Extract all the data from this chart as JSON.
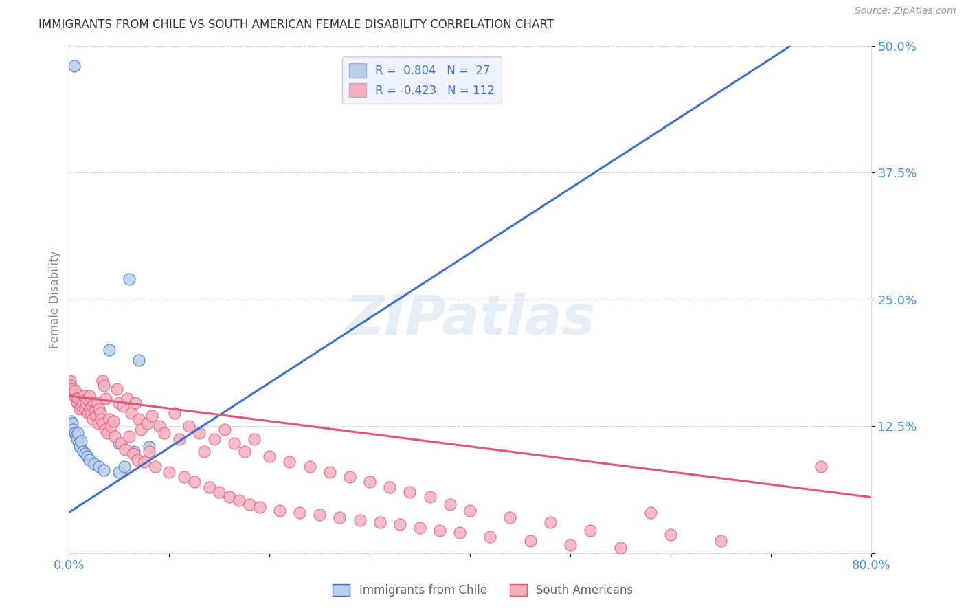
{
  "title": "IMMIGRANTS FROM CHILE VS SOUTH AMERICAN FEMALE DISABILITY CORRELATION CHART",
  "source": "Source: ZipAtlas.com",
  "ylabel": "Female Disability",
  "x_min": 0.0,
  "x_max": 0.8,
  "y_min": 0.0,
  "y_max": 0.5,
  "x_ticks": [
    0.0,
    0.1,
    0.2,
    0.3,
    0.4,
    0.5,
    0.6,
    0.7,
    0.8
  ],
  "x_tick_labels": [
    "0.0%",
    "",
    "",
    "",
    "",
    "",
    "",
    "",
    "80.0%"
  ],
  "y_ticks": [
    0.0,
    0.125,
    0.25,
    0.375,
    0.5
  ],
  "y_tick_labels": [
    "",
    "12.5%",
    "25.0%",
    "37.5%",
    "50.0%"
  ],
  "legend_items": [
    "Immigrants from Chile",
    "South Americans"
  ],
  "blue_R": 0.804,
  "blue_N": 27,
  "pink_R": -0.423,
  "pink_N": 112,
  "blue_color": "#b8d0ea",
  "pink_color": "#f5b0c0",
  "blue_line_color": "#4070c8",
  "pink_line_color": "#e05878",
  "axis_label_color": "#4a90d9",
  "grid_color": "#c8d8e8",
  "background_color": "#ffffff",
  "blue_line_x0": 0.0,
  "blue_line_y0": 0.04,
  "blue_line_x1": 0.72,
  "blue_line_y1": 0.5,
  "pink_line_x0": 0.0,
  "pink_line_y0": 0.155,
  "pink_line_x1": 0.8,
  "pink_line_y1": 0.055,
  "blue_dots_x": [
    0.001,
    0.002,
    0.003,
    0.004,
    0.005,
    0.006,
    0.007,
    0.008,
    0.009,
    0.01,
    0.011,
    0.012,
    0.014,
    0.016,
    0.018,
    0.02,
    0.025,
    0.03,
    0.035,
    0.04,
    0.05,
    0.055,
    0.06,
    0.065,
    0.07,
    0.08,
    0.05
  ],
  "blue_dots_y": [
    0.125,
    0.13,
    0.128,
    0.122,
    0.48,
    0.118,
    0.115,
    0.112,
    0.118,
    0.108,
    0.105,
    0.11,
    0.1,
    0.098,
    0.095,
    0.092,
    0.088,
    0.085,
    0.082,
    0.2,
    0.08,
    0.085,
    0.27,
    0.1,
    0.19,
    0.105,
    0.108
  ],
  "pink_dots_x": [
    0.001,
    0.002,
    0.003,
    0.004,
    0.005,
    0.006,
    0.007,
    0.008,
    0.009,
    0.01,
    0.011,
    0.012,
    0.013,
    0.014,
    0.015,
    0.016,
    0.017,
    0.018,
    0.019,
    0.02,
    0.021,
    0.022,
    0.023,
    0.024,
    0.025,
    0.026,
    0.027,
    0.028,
    0.029,
    0.03,
    0.031,
    0.032,
    0.033,
    0.034,
    0.035,
    0.036,
    0.037,
    0.038,
    0.04,
    0.042,
    0.044,
    0.046,
    0.048,
    0.05,
    0.052,
    0.054,
    0.056,
    0.058,
    0.06,
    0.062,
    0.064,
    0.066,
    0.068,
    0.07,
    0.072,
    0.075,
    0.078,
    0.08,
    0.083,
    0.086,
    0.09,
    0.095,
    0.1,
    0.105,
    0.11,
    0.115,
    0.12,
    0.125,
    0.13,
    0.135,
    0.14,
    0.145,
    0.15,
    0.155,
    0.16,
    0.165,
    0.17,
    0.175,
    0.18,
    0.185,
    0.19,
    0.2,
    0.21,
    0.22,
    0.23,
    0.24,
    0.25,
    0.26,
    0.27,
    0.28,
    0.29,
    0.3,
    0.31,
    0.32,
    0.33,
    0.34,
    0.35,
    0.36,
    0.37,
    0.38,
    0.39,
    0.4,
    0.42,
    0.44,
    0.46,
    0.48,
    0.5,
    0.52,
    0.55,
    0.6,
    0.65,
    0.75,
    0.58
  ],
  "pink_dots_y": [
    0.17,
    0.165,
    0.162,
    0.158,
    0.155,
    0.16,
    0.152,
    0.148,
    0.152,
    0.145,
    0.142,
    0.15,
    0.145,
    0.148,
    0.155,
    0.142,
    0.148,
    0.152,
    0.138,
    0.155,
    0.142,
    0.138,
    0.145,
    0.132,
    0.148,
    0.14,
    0.135,
    0.148,
    0.128,
    0.142,
    0.138,
    0.132,
    0.17,
    0.128,
    0.165,
    0.122,
    0.152,
    0.118,
    0.132,
    0.125,
    0.13,
    0.115,
    0.162,
    0.148,
    0.108,
    0.145,
    0.102,
    0.152,
    0.115,
    0.138,
    0.098,
    0.148,
    0.092,
    0.132,
    0.122,
    0.09,
    0.128,
    0.1,
    0.135,
    0.085,
    0.125,
    0.118,
    0.08,
    0.138,
    0.112,
    0.075,
    0.125,
    0.07,
    0.118,
    0.1,
    0.065,
    0.112,
    0.06,
    0.122,
    0.055,
    0.108,
    0.052,
    0.1,
    0.048,
    0.112,
    0.045,
    0.095,
    0.042,
    0.09,
    0.04,
    0.085,
    0.038,
    0.08,
    0.035,
    0.075,
    0.032,
    0.07,
    0.03,
    0.065,
    0.028,
    0.06,
    0.025,
    0.055,
    0.022,
    0.048,
    0.02,
    0.042,
    0.016,
    0.035,
    0.012,
    0.03,
    0.008,
    0.022,
    0.005,
    0.018,
    0.012,
    0.085,
    0.04
  ]
}
